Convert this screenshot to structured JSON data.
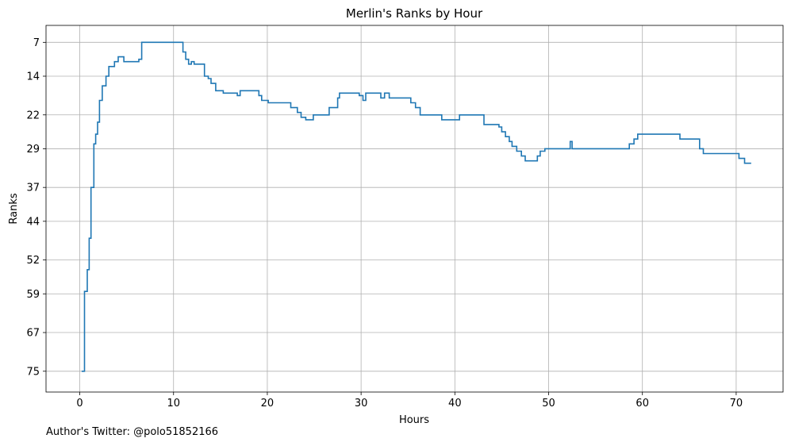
{
  "chart_data": {
    "type": "line",
    "drawstyle": "steps",
    "title": "Merlin's Ranks by Hour",
    "xlabel": "Hours",
    "ylabel": "Ranks",
    "xlim": [
      -3.6,
      75
    ],
    "ylim": [
      79.3,
      3.5
    ],
    "y_inverted": true,
    "xticks": [
      0,
      10,
      20,
      30,
      40,
      50,
      60,
      70
    ],
    "yticks": [
      7,
      14,
      22,
      29,
      37,
      44,
      52,
      59,
      67,
      75
    ],
    "grid": true,
    "line_color": "#1f77b4",
    "series": [
      {
        "x": [
          0.2,
          0.5,
          0.8,
          1.0,
          1.2,
          1.5,
          1.7,
          1.9,
          2.1,
          2.4,
          2.8,
          3.1,
          3.7,
          4.1,
          4.7,
          6.3,
          6.6,
          11.0,
          11.3,
          11.6,
          11.9,
          12.2,
          13.3,
          13.7,
          14.0,
          14.5,
          15.3,
          16.8,
          17.1,
          19.1,
          19.4,
          20.1,
          22.5,
          23.2,
          23.6,
          24.1,
          24.9,
          26.6,
          27.5,
          27.7,
          29.8,
          30.2,
          30.5,
          32.1,
          32.5,
          33.0,
          35.3,
          35.8,
          36.3,
          38.6,
          40.5,
          43.1,
          44.7,
          45.0,
          45.4,
          45.8,
          46.1,
          46.6,
          47.1,
          47.5,
          48.8,
          49.1,
          49.6,
          52.3,
          52.5,
          58.6,
          59.1,
          59.5,
          64.0,
          66.1,
          66.5,
          70.3,
          70.9,
          71.6
        ],
        "y": [
          75,
          58.5,
          54,
          47.5,
          37,
          28,
          26,
          23.5,
          19,
          16,
          14,
          12,
          11,
          10,
          11,
          10.5,
          7,
          9,
          10.5,
          11.5,
          11,
          11.5,
          14,
          14.5,
          15.5,
          17,
          17.5,
          18,
          17,
          18,
          19,
          19.5,
          20.5,
          21.5,
          22.5,
          23,
          22,
          20.5,
          18.5,
          17.5,
          18,
          19,
          17.5,
          18.5,
          17.5,
          18.5,
          19.5,
          20.5,
          22,
          23,
          22,
          24,
          24.5,
          25.5,
          26.5,
          27.5,
          28.5,
          29.5,
          30.5,
          31.5,
          30.5,
          29.5,
          29,
          27.5,
          29,
          28,
          27,
          26,
          27,
          29,
          30,
          31,
          32,
          32
        ]
      }
    ]
  },
  "footer": {
    "text": "Author's Twitter: @polo51852166"
  }
}
